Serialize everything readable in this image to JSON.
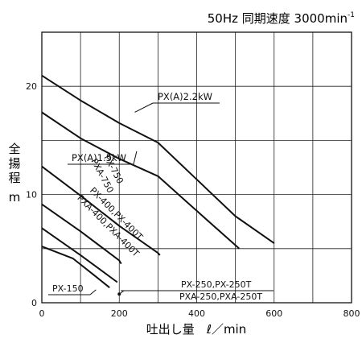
{
  "chart_data": {
    "type": "line",
    "title_prefix": "50Hz 同期速度 3000min",
    "title_sup": "-1",
    "xlabel": "吐出し量　ℓ／min",
    "ylabel_chars": [
      "全",
      "揚",
      "程"
    ],
    "ylabel_unit": "m",
    "xlim": [
      0,
      800
    ],
    "ylim": [
      0,
      25
    ],
    "xticks": [
      0,
      200,
      400,
      600,
      800
    ],
    "xtick_labels": [
      "0",
      "200",
      "400",
      "600",
      "800"
    ],
    "yticks": [
      0,
      10,
      20
    ],
    "ytick_labels": [
      "0",
      "10",
      "20"
    ],
    "grid": true,
    "grid_x_step": 100,
    "grid_y_step": 5,
    "series": [
      {
        "name": "PX(A)2.2kW",
        "x": [
          0,
          100,
          200,
          300,
          400,
          500,
          600
        ],
        "y": [
          21,
          18.7,
          16.6,
          14.8,
          11.4,
          8.0,
          5.5
        ]
      },
      {
        "name": "PX(A)1.5kW",
        "x": [
          0,
          100,
          200,
          300,
          400,
          510
        ],
        "y": [
          17.6,
          15.2,
          13.3,
          11.7,
          8.5,
          5.0
        ]
      },
      {
        "name": "",
        "x": [
          0,
          100,
          200,
          300,
          305
        ],
        "y": [
          12.6,
          9.9,
          7.1,
          4.6,
          4.4
        ]
      },
      {
        "name": "",
        "x": [
          0,
          100,
          200,
          205
        ],
        "y": [
          9.1,
          6.6,
          3.9,
          3.6
        ]
      },
      {
        "name": "",
        "x": [
          0,
          100,
          195
        ],
        "y": [
          6.9,
          4.4,
          1.9
        ]
      },
      {
        "name": "",
        "x": [
          0,
          80,
          140,
          175
        ],
        "y": [
          5.2,
          4.1,
          2.4,
          1.4
        ]
      }
    ],
    "annotations": [
      {
        "text": "PX(A)2.2kW",
        "target": [
          240,
          17.6
        ]
      },
      {
        "text": "PX(A)1.5kW",
        "target": [
          245,
          14.0
        ]
      },
      {
        "text": "PX-750",
        "near": [
          100,
          11.1
        ]
      },
      {
        "text": "PXA-750",
        "near": [
          100,
          9.5
        ]
      },
      {
        "text": "PX-400,PX-400T",
        "near": [
          100,
          7.1
        ]
      },
      {
        "text": "PXA-400,PXA-400T",
        "near": [
          100,
          5.7
        ]
      },
      {
        "text": "PX-150",
        "target": [
          140,
          1.2
        ]
      },
      {
        "text": "PX-250,PX-250T",
        "target": [
          200,
          0.8
        ]
      },
      {
        "text": "PXA-250,PXA-250T",
        "target": [
          200,
          0.5
        ]
      }
    ]
  }
}
